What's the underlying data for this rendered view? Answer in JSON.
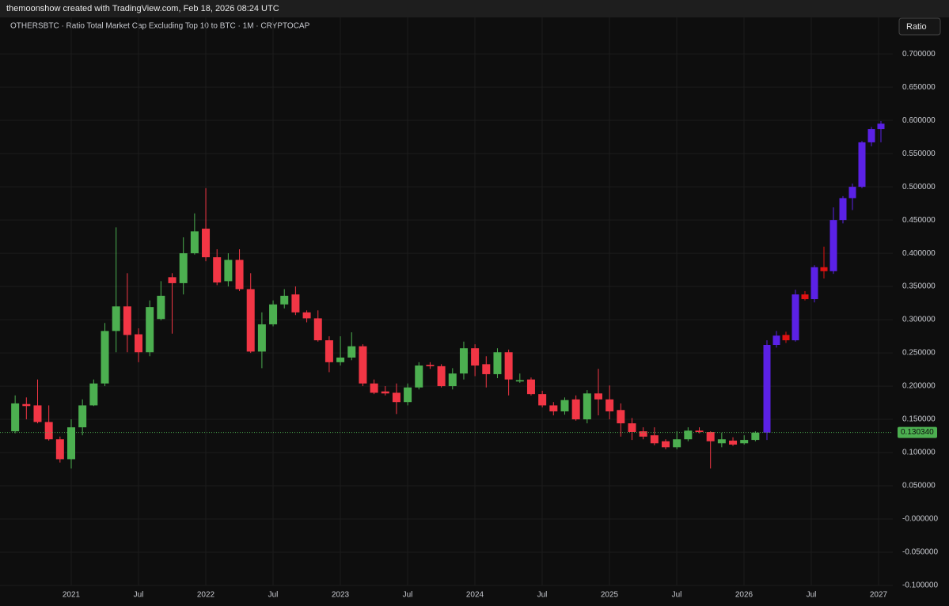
{
  "header": "themoonshow created with TradingView.com, Feb 18, 2026 08:24 UTC",
  "button": "Ratio",
  "chart_data": {
    "type": "candlestick",
    "title": "OTHERSBTC · Ratio Total Market Cap Excluding Top 10 to BTC · 1M · CRYPTOCAP",
    "ylim": [
      -0.1,
      0.755
    ],
    "yticks": [
      {
        "value": -0.1,
        "label": "-0.100000"
      },
      {
        "value": -0.05,
        "label": "-0.050000"
      },
      {
        "value": 0,
        "label": "-0.000000"
      },
      {
        "value": 0.05,
        "label": "0.050000"
      },
      {
        "value": 0.1,
        "label": "0.100000"
      },
      {
        "value": 0.15,
        "label": "0.150000"
      },
      {
        "value": 0.2,
        "label": "0.200000"
      },
      {
        "value": 0.25,
        "label": "0.250000"
      },
      {
        "value": 0.3,
        "label": "0.300000"
      },
      {
        "value": 0.35,
        "label": "0.350000"
      },
      {
        "value": 0.4,
        "label": "0.400000"
      },
      {
        "value": 0.45,
        "label": "0.450000"
      },
      {
        "value": 0.5,
        "label": "0.500000"
      },
      {
        "value": 0.55,
        "label": "0.550000"
      },
      {
        "value": 0.6,
        "label": "0.600000"
      },
      {
        "value": 0.65,
        "label": "0.650000"
      },
      {
        "value": 0.7,
        "label": "0.700000"
      }
    ],
    "x_labels": [
      "2021",
      "Jul",
      "2022",
      "Jul",
      "2023",
      "Jul",
      "2024",
      "Jul",
      "2025",
      "Jul",
      "2026",
      "Jul",
      "2027"
    ],
    "grid": true,
    "last_price": {
      "value": 0.13034,
      "label": "0.130340",
      "color": "#4caf50"
    },
    "series": [
      {
        "up_color": "#4caf50",
        "down_color": "#f23645",
        "candles": [
          {
            "open": 0.132,
            "high": 0.186,
            "low": 0.129,
            "close": 0.174
          },
          {
            "open": 0.173,
            "high": 0.183,
            "low": 0.15,
            "close": 0.17
          },
          {
            "open": 0.171,
            "high": 0.21,
            "low": 0.144,
            "close": 0.146
          },
          {
            "open": 0.146,
            "high": 0.171,
            "low": 0.118,
            "close": 0.12
          },
          {
            "open": 0.12,
            "high": 0.124,
            "low": 0.085,
            "close": 0.09
          },
          {
            "open": 0.09,
            "high": 0.15,
            "low": 0.076,
            "close": 0.138
          },
          {
            "open": 0.138,
            "high": 0.18,
            "low": 0.126,
            "close": 0.171
          },
          {
            "open": 0.171,
            "high": 0.21,
            "low": 0.17,
            "close": 0.204
          },
          {
            "open": 0.204,
            "high": 0.295,
            "low": 0.2,
            "close": 0.283
          },
          {
            "open": 0.283,
            "high": 0.439,
            "low": 0.251,
            "close": 0.32
          },
          {
            "open": 0.32,
            "high": 0.37,
            "low": 0.251,
            "close": 0.277
          },
          {
            "open": 0.278,
            "high": 0.287,
            "low": 0.236,
            "close": 0.251
          },
          {
            "open": 0.251,
            "high": 0.329,
            "low": 0.245,
            "close": 0.319
          },
          {
            "open": 0.301,
            "high": 0.358,
            "low": 0.299,
            "close": 0.336
          },
          {
            "open": 0.364,
            "high": 0.37,
            "low": 0.279,
            "close": 0.355
          },
          {
            "open": 0.355,
            "high": 0.424,
            "low": 0.338,
            "close": 0.4
          },
          {
            "open": 0.4,
            "high": 0.46,
            "low": 0.398,
            "close": 0.433
          },
          {
            "open": 0.437,
            "high": 0.498,
            "low": 0.388,
            "close": 0.394
          },
          {
            "open": 0.394,
            "high": 0.406,
            "low": 0.352,
            "close": 0.356
          },
          {
            "open": 0.358,
            "high": 0.4,
            "low": 0.35,
            "close": 0.39
          },
          {
            "open": 0.39,
            "high": 0.406,
            "low": 0.343,
            "close": 0.346
          },
          {
            "open": 0.346,
            "high": 0.37,
            "low": 0.25,
            "close": 0.252
          },
          {
            "open": 0.252,
            "high": 0.311,
            "low": 0.227,
            "close": 0.293
          },
          {
            "open": 0.293,
            "high": 0.329,
            "low": 0.29,
            "close": 0.323
          },
          {
            "open": 0.323,
            "high": 0.346,
            "low": 0.317,
            "close": 0.336
          },
          {
            "open": 0.338,
            "high": 0.35,
            "low": 0.307,
            "close": 0.311
          },
          {
            "open": 0.311,
            "high": 0.314,
            "low": 0.296,
            "close": 0.302
          },
          {
            "open": 0.302,
            "high": 0.314,
            "low": 0.267,
            "close": 0.269
          },
          {
            "open": 0.269,
            "high": 0.275,
            "low": 0.221,
            "close": 0.236
          },
          {
            "open": 0.236,
            "high": 0.275,
            "low": 0.231,
            "close": 0.243
          },
          {
            "open": 0.243,
            "high": 0.281,
            "low": 0.239,
            "close": 0.26
          },
          {
            "open": 0.26,
            "high": 0.263,
            "low": 0.2,
            "close": 0.204
          },
          {
            "open": 0.204,
            "high": 0.21,
            "low": 0.188,
            "close": 0.19
          },
          {
            "open": 0.192,
            "high": 0.2,
            "low": 0.186,
            "close": 0.189
          },
          {
            "open": 0.19,
            "high": 0.204,
            "low": 0.158,
            "close": 0.176
          },
          {
            "open": 0.176,
            "high": 0.204,
            "low": 0.171,
            "close": 0.198
          },
          {
            "open": 0.198,
            "high": 0.236,
            "low": 0.195,
            "close": 0.231
          },
          {
            "open": 0.232,
            "high": 0.236,
            "low": 0.226,
            "close": 0.23
          },
          {
            "open": 0.23,
            "high": 0.233,
            "low": 0.198,
            "close": 0.2
          },
          {
            "open": 0.2,
            "high": 0.227,
            "low": 0.195,
            "close": 0.219
          },
          {
            "open": 0.219,
            "high": 0.267,
            "low": 0.21,
            "close": 0.257
          },
          {
            "open": 0.257,
            "high": 0.263,
            "low": 0.215,
            "close": 0.231
          },
          {
            "open": 0.233,
            "high": 0.245,
            "low": 0.198,
            "close": 0.218
          },
          {
            "open": 0.218,
            "high": 0.257,
            "low": 0.212,
            "close": 0.251
          },
          {
            "open": 0.251,
            "high": 0.255,
            "low": 0.186,
            "close": 0.21
          },
          {
            "open": 0.207,
            "high": 0.219,
            "low": 0.205,
            "close": 0.209
          },
          {
            "open": 0.21,
            "high": 0.213,
            "low": 0.186,
            "close": 0.188
          },
          {
            "open": 0.188,
            "high": 0.193,
            "low": 0.168,
            "close": 0.171
          },
          {
            "open": 0.171,
            "high": 0.176,
            "low": 0.156,
            "close": 0.162
          },
          {
            "open": 0.162,
            "high": 0.183,
            "low": 0.157,
            "close": 0.179
          },
          {
            "open": 0.18,
            "high": 0.186,
            "low": 0.148,
            "close": 0.15
          },
          {
            "open": 0.15,
            "high": 0.194,
            "low": 0.144,
            "close": 0.189
          },
          {
            "open": 0.189,
            "high": 0.226,
            "low": 0.156,
            "close": 0.18
          },
          {
            "open": 0.18,
            "high": 0.201,
            "low": 0.15,
            "close": 0.162
          },
          {
            "open": 0.164,
            "high": 0.174,
            "low": 0.124,
            "close": 0.144
          },
          {
            "open": 0.144,
            "high": 0.152,
            "low": 0.119,
            "close": 0.131
          },
          {
            "open": 0.132,
            "high": 0.138,
            "low": 0.12,
            "close": 0.124
          },
          {
            "open": 0.126,
            "high": 0.138,
            "low": 0.111,
            "close": 0.114
          },
          {
            "open": 0.117,
            "high": 0.12,
            "low": 0.105,
            "close": 0.108
          },
          {
            "open": 0.108,
            "high": 0.132,
            "low": 0.105,
            "close": 0.12
          },
          {
            "open": 0.12,
            "high": 0.138,
            "low": 0.117,
            "close": 0.133
          },
          {
            "open": 0.133,
            "high": 0.138,
            "low": 0.129,
            "close": 0.131
          },
          {
            "open": 0.131,
            "high": 0.132,
            "low": 0.076,
            "close": 0.117
          },
          {
            "open": 0.114,
            "high": 0.13,
            "low": 0.108,
            "close": 0.12
          },
          {
            "open": 0.118,
            "high": 0.123,
            "low": 0.11,
            "close": 0.112
          },
          {
            "open": 0.114,
            "high": 0.126,
            "low": 0.112,
            "close": 0.119
          },
          {
            "open": 0.119,
            "high": 0.132,
            "low": 0.117,
            "close": 0.13
          }
        ]
      },
      {
        "up_color": "#5b21e6",
        "down_color": "#e01212",
        "candles": [
          {
            "open": 0.13,
            "high": 0.269,
            "low": 0.119,
            "close": 0.262
          },
          {
            "open": 0.262,
            "high": 0.283,
            "low": 0.258,
            "close": 0.276
          },
          {
            "open": 0.277,
            "high": 0.282,
            "low": 0.265,
            "close": 0.269
          },
          {
            "open": 0.269,
            "high": 0.345,
            "low": 0.267,
            "close": 0.338
          },
          {
            "open": 0.338,
            "high": 0.343,
            "low": 0.329,
            "close": 0.331
          },
          {
            "open": 0.331,
            "high": 0.382,
            "low": 0.326,
            "close": 0.379
          },
          {
            "open": 0.379,
            "high": 0.41,
            "low": 0.362,
            "close": 0.373
          },
          {
            "open": 0.373,
            "high": 0.469,
            "low": 0.369,
            "close": 0.45
          },
          {
            "open": 0.45,
            "high": 0.486,
            "low": 0.445,
            "close": 0.483
          },
          {
            "open": 0.483,
            "high": 0.505,
            "low": 0.465,
            "close": 0.5
          },
          {
            "open": 0.5,
            "high": 0.569,
            "low": 0.498,
            "close": 0.567
          },
          {
            "open": 0.567,
            "high": 0.59,
            "low": 0.561,
            "close": 0.587
          },
          {
            "open": 0.587,
            "high": 0.599,
            "low": 0.567,
            "close": 0.595
          }
        ]
      }
    ]
  }
}
